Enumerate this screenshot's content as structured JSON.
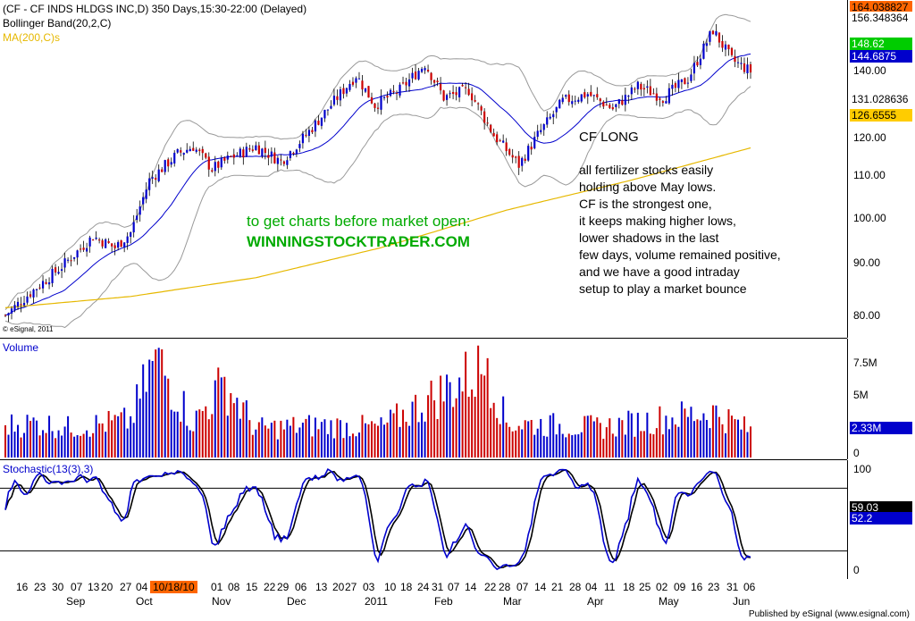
{
  "header": {
    "title": "(CF - CF INDS HLDGS INC,D) 350 Days,15:30-22:00 (Delayed)",
    "bollinger": "Bollinger Band(20,2,C)",
    "ma": "MA(200,C)s"
  },
  "watermark": "© eSignal, 2011",
  "footer": "Published by eSignal (www.esignal.com)",
  "annotations": {
    "promo_line1": "to get charts before market open:",
    "promo_line2": "WINNINGSTOCKTRADER.COM",
    "heading": "CF LONG",
    "notes": [
      "all fertilizer stocks easily",
      "holding above May lows.",
      "CF is the strongest one,",
      "it keeps making higher lows,",
      "lower shadows in the last",
      "few days, volume remained positive,",
      "and we have a good intraday",
      "setup to play a market bounce"
    ]
  },
  "price_axis": {
    "ticks": [
      "80.00",
      "90.00",
      "100.00",
      "110.00",
      "120.00",
      "140.00"
    ],
    "tags": [
      {
        "label": "164.038827",
        "bg": "#ff6600",
        "fg": "#000000"
      },
      {
        "label": "156.348364",
        "bg": "#ffffff",
        "fg": "#000000"
      },
      {
        "label": "148.62",
        "bg": "#00cc00",
        "fg": "#ffffff"
      },
      {
        "label": "144.6875",
        "bg": "#0000cc",
        "fg": "#ffffff"
      },
      {
        "label": "131.028636",
        "bg": "#ffffff",
        "fg": "#000000"
      },
      {
        "label": "126.6555",
        "bg": "#ffcc00",
        "fg": "#000000"
      }
    ]
  },
  "volume_panel": {
    "title": "Volume",
    "ticks": [
      "7.5M",
      "5M",
      "0"
    ],
    "last": "2.33M"
  },
  "stoch_panel": {
    "title": "Stochastic(13(3),3)",
    "ticks": [
      "100",
      "0"
    ],
    "last1": "59.03",
    "last2": "52.2"
  },
  "date_axis": {
    "days": [
      "16",
      "23",
      "30",
      "07",
      "13",
      "20",
      "27",
      "04",
      "10/18/10",
      "01",
      "08",
      "15",
      "22",
      "29",
      "06",
      "13",
      "20",
      "27",
      "03",
      "10",
      "18",
      "24",
      "31",
      "07",
      "14",
      "22",
      "28",
      "07",
      "14",
      "21",
      "28",
      "04",
      "11",
      "18",
      "25",
      "02",
      "09",
      "16",
      "23",
      "31",
      "06"
    ],
    "months": [
      "Sep",
      "Oct",
      "Nov",
      "Dec",
      "2011",
      "Feb",
      "Mar",
      "Apr",
      "May",
      "Jun"
    ]
  },
  "colors": {
    "up": "#0000cc",
    "down": "#cc0000",
    "bollinger": "#999999",
    "ma20": "#0000cc",
    "ma200": "#e6b800",
    "stoch_k": "#0000cc",
    "stoch_d": "#000000",
    "promo": "#00aa00"
  },
  "chart_data": {
    "type": "candlestick",
    "price_range": [
      76,
      166
    ],
    "price_anchors": [
      [
        0,
        82
      ],
      [
        8,
        88
      ],
      [
        18,
        95
      ],
      [
        28,
        103
      ],
      [
        35,
        100
      ],
      [
        40,
        104
      ],
      [
        46,
        118
      ],
      [
        55,
        125
      ],
      [
        60,
        127
      ],
      [
        66,
        121
      ],
      [
        72,
        124
      ],
      [
        80,
        127
      ],
      [
        88,
        123
      ],
      [
        96,
        130
      ],
      [
        104,
        138
      ],
      [
        112,
        146
      ],
      [
        118,
        138
      ],
      [
        126,
        142
      ],
      [
        134,
        149
      ],
      [
        140,
        140
      ],
      [
        148,
        142
      ],
      [
        156,
        130
      ],
      [
        164,
        122
      ],
      [
        170,
        130
      ],
      [
        178,
        139
      ],
      [
        186,
        141
      ],
      [
        194,
        137
      ],
      [
        202,
        143
      ],
      [
        210,
        140
      ],
      [
        218,
        145
      ],
      [
        226,
        158
      ],
      [
        232,
        150
      ],
      [
        238,
        147
      ]
    ],
    "ma200_anchors": [
      [
        0,
        84
      ],
      [
        40,
        87
      ],
      [
        80,
        92
      ],
      [
        120,
        100
      ],
      [
        160,
        110
      ],
      [
        200,
        118
      ],
      [
        238,
        126.6
      ]
    ],
    "volume_anchors": [
      [
        0,
        2.8
      ],
      [
        10,
        3.0
      ],
      [
        20,
        2.6
      ],
      [
        40,
        3.2
      ],
      [
        48,
        8.7
      ],
      [
        60,
        3.0
      ],
      [
        70,
        6.5
      ],
      [
        80,
        2.5
      ],
      [
        100,
        2.8
      ],
      [
        120,
        2.6
      ],
      [
        154,
        8.0
      ],
      [
        160,
        3.0
      ],
      [
        190,
        2.6
      ],
      [
        226,
        4.0
      ],
      [
        238,
        2.33
      ]
    ],
    "volume_max": 9,
    "stoch_levels": [
      80,
      20
    ]
  }
}
